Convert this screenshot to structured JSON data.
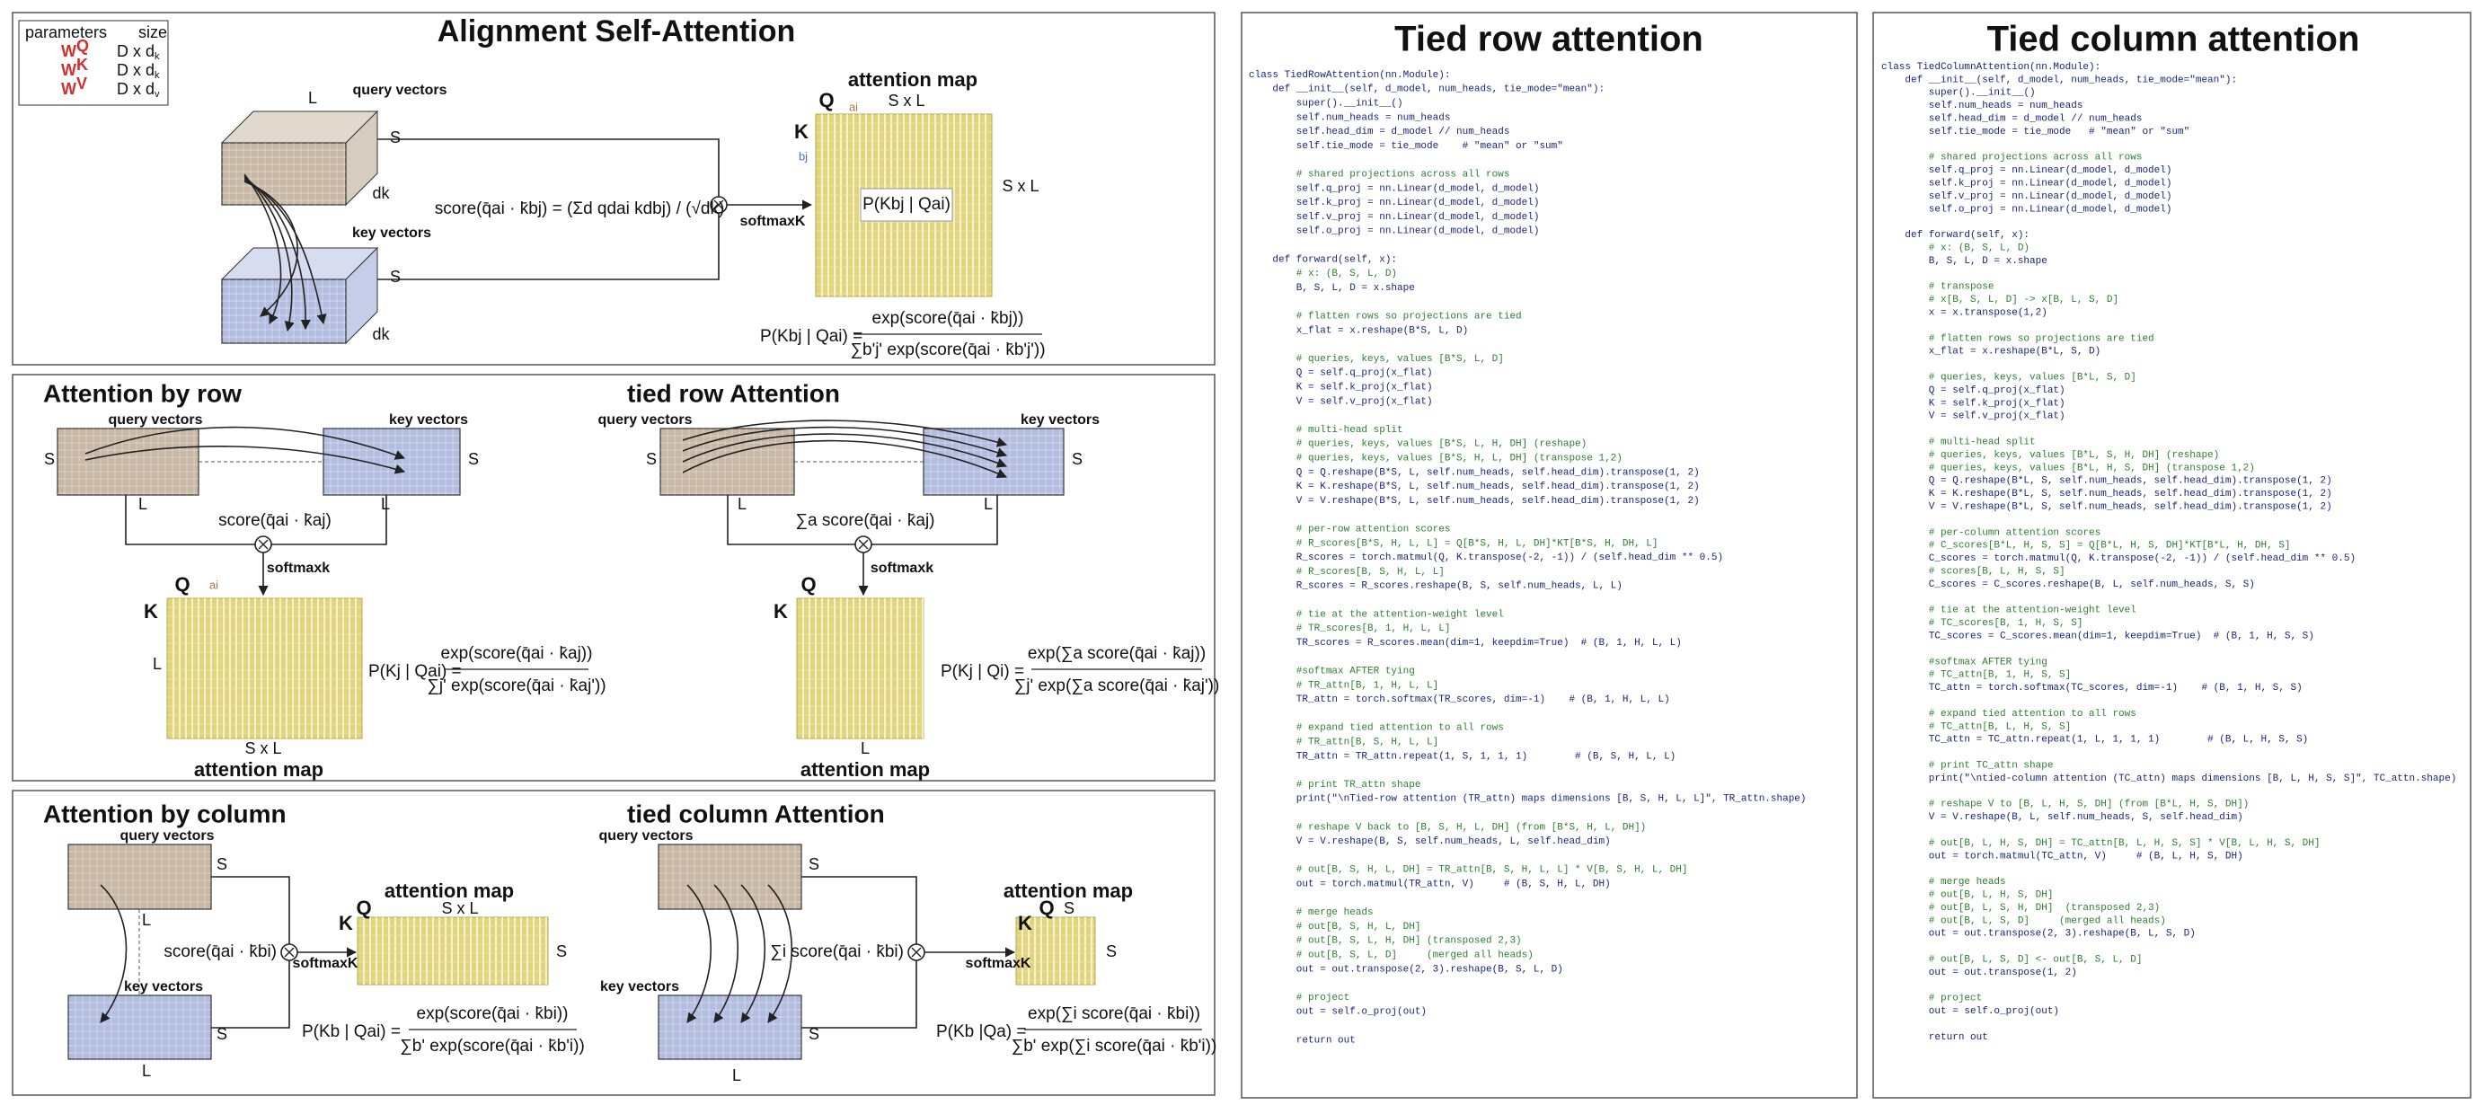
{
  "parameters": {
    "header": [
      "parameters",
      "size"
    ],
    "rows": [
      {
        "name": "W",
        "sup": "Q",
        "size": "D x d",
        "sub": "k"
      },
      {
        "name": "W",
        "sup": "K",
        "size": "D x d",
        "sub": "k"
      },
      {
        "name": "W",
        "sup": "V",
        "size": "D x d",
        "sub": "v"
      }
    ]
  },
  "alignment": {
    "title": "Alignment Self-Attention",
    "query_vectors": "query vectors",
    "key_vectors": "key vectors",
    "L": "L",
    "S_query": "S",
    "dk_query": "dk",
    "S_key": "S",
    "dk_key": "dk",
    "score": "score(q̄ai · k̄bj) = (Σd qdai kdbj) / (√dk)",
    "softmax": "softmaxK",
    "map_title": "attention map",
    "Q": "Q",
    "ai": "ai",
    "K": "K",
    "bj": "bj",
    "map_cols": "S x L",
    "map_rows": "S x L",
    "cell": "P(Kbj | Qai)",
    "prob_lhs": "P(Kbj | Qai) =",
    "prob_num": "exp(score(q̄ai · k̄bj))",
    "prob_den": "∑bʹjʹ exp(score(q̄ai · k̄bʹjʹ))"
  },
  "by_row": {
    "title": "Attention by row",
    "query_vectors": "query vectors",
    "key_vectors": "key vectors",
    "S_left": "S",
    "S_right": "S",
    "L_left": "L",
    "L_right": "L",
    "score": "score(q̄ai · k̄aj)",
    "softmax": "softmaxk",
    "Q": "Q",
    "ai": "ai",
    "K": "K",
    "L": "L",
    "map_cols": "S x L",
    "map_title": "attention map",
    "prob_lhs": "P(Kj | Qai) =",
    "prob_num": "exp(score(q̄ai · k̄aj))",
    "prob_den": "∑jʹ exp(score(q̄ai · k̄ajʹ))"
  },
  "tied_row": {
    "title": "tied row Attention",
    "query_vectors": "query vectors",
    "key_vectors": "key vectors",
    "S_left": "S",
    "S_right": "S",
    "L_left": "L",
    "L_right": "L",
    "score": "∑a score(q̄ai · k̄aj)",
    "softmax": "softmaxk",
    "Q": "Q",
    "K": "K",
    "L": "L",
    "map_cols": "L",
    "map_title": "attention map",
    "prob_lhs": "P(Kj | Qi) =",
    "prob_num": "exp(∑a score(q̄ai · k̄aj))",
    "prob_den": "∑jʹ exp(∑a score(q̄ai · k̄ajʹ))"
  },
  "by_column": {
    "title": "Attention by column",
    "query_vectors": "query vectors",
    "key_vectors": "key vectors",
    "S_query": "S",
    "S_key": "S",
    "L_query": "L",
    "L_key": "L",
    "score": "score(q̄ai · k̄bi)",
    "softmax": "softmaxK",
    "map_title": "attention map",
    "Q": "Q",
    "map_cols": "S x L",
    "K": "K",
    "map_rows": "S",
    "prob_lhs": "P(Kb | Qai) =",
    "prob_num": "exp(score(q̄ai · k̄bi))",
    "prob_den": "∑bʹ exp(score(q̄ai · k̄bʹi))"
  },
  "tied_column": {
    "title": "tied column Attention",
    "query_vectors": "query vectors",
    "key_vectors": "key vectors",
    "S_query": "S",
    "S_key": "S",
    "L": "L",
    "score": "∑i score(q̄ai · k̄bi)",
    "softmax": "softmaxK",
    "map_title": "attention map",
    "Q": "Q",
    "map_cols": "S",
    "K": "K",
    "map_rows": "S",
    "prob_lhs": "P(Kb |Qa) =",
    "prob_num": "exp(∑i score(q̄ai · k̄bi))",
    "prob_den": "∑bʹ exp(∑i score(q̄ai · k̄bʹi))"
  },
  "code_row": {
    "title": "Tied row attention",
    "lines": [
      "class TiedRowAttention(nn.Module):",
      "    def __init__(self, d_model, num_heads, tie_mode=\"mean\"):",
      "        super().__init__()",
      "        self.num_heads = num_heads",
      "        self.head_dim = d_model // num_heads",
      "        self.tie_mode = tie_mode    # \"mean\" or \"sum\"",
      "",
      "        # shared projections across all rows",
      "        self.q_proj = nn.Linear(d_model, d_model)",
      "        self.k_proj = nn.Linear(d_model, d_model)",
      "        self.v_proj = nn.Linear(d_model, d_model)",
      "        self.o_proj = nn.Linear(d_model, d_model)",
      "",
      "    def forward(self, x):",
      "        # x: (B, S, L, D)",
      "        B, S, L, D = x.shape",
      "",
      "        # flatten rows so projections are tied",
      "        x_flat = x.reshape(B*S, L, D)",
      "",
      "        # queries, keys, values [B*S, L, D]",
      "        Q = self.q_proj(x_flat)",
      "        K = self.k_proj(x_flat)",
      "        V = self.v_proj(x_flat)",
      "",
      "        # multi-head split",
      "        # queries, keys, values [B*S, L, H, DH] (reshape)",
      "        # queries, keys, values [B*S, H, L, DH] (transpose 1,2)",
      "        Q = Q.reshape(B*S, L, self.num_heads, self.head_dim).transpose(1, 2)",
      "        K = K.reshape(B*S, L, self.num_heads, self.head_dim).transpose(1, 2)",
      "        V = V.reshape(B*S, L, self.num_heads, self.head_dim).transpose(1, 2)",
      "",
      "        # per-row attention scores",
      "        # R_scores[B*S, H, L, L] = Q[B*S, H, L, DH]*KT[B*S, H, DH, L]",
      "        R_scores = torch.matmul(Q, K.transpose(-2, -1)) / (self.head_dim ** 0.5)",
      "        # R_scores[B, S, H, L, L]",
      "        R_scores = R_scores.reshape(B, S, self.num_heads, L, L)",
      "",
      "        # tie at the attention-weight level",
      "        # TR_scores[B, 1, H, L, L]",
      "        TR_scores = R_scores.mean(dim=1, keepdim=True)  # (B, 1, H, L, L)",
      "",
      "        #softmax AFTER tying",
      "        # TR_attn[B, 1, H, L, L]",
      "        TR_attn = torch.softmax(TR_scores, dim=-1)    # (B, 1, H, L, L)",
      "",
      "        # expand tied attention to all rows",
      "        # TR_attn[B, S, H, L, L]",
      "        TR_attn = TR_attn.repeat(1, S, 1, 1, 1)        # (B, S, H, L, L)",
      "",
      "        # print TR_attn shape",
      "        print(\"\\nTied-row attention (TR_attn) maps dimensions [B, S, H, L, L]\", TR_attn.shape)",
      "",
      "        # reshape V back to [B, S, H, L, DH] (from [B*S, H, L, DH])",
      "        V = V.reshape(B, S, self.num_heads, L, self.head_dim)",
      "",
      "        # out[B, S, H, L, DH] = TR_attn[B, S, H, L, L] * V[B, S, H, L, DH]",
      "        out = torch.matmul(TR_attn, V)     # (B, S, H, L, DH)",
      "",
      "        # merge heads",
      "        # out[B, S, H, L, DH]",
      "        # out[B, S, L, H, DH] (transposed 2,3)",
      "        # out[B, S, L, D]     (merged all heads)",
      "        out = out.transpose(2, 3).reshape(B, S, L, D)",
      "",
      "        # project",
      "        out = self.o_proj(out)",
      "",
      "        return out"
    ]
  },
  "code_column": {
    "title": "Tied column attention",
    "lines": [
      "class TiedColumnAttention(nn.Module):",
      "    def __init__(self, d_model, num_heads, tie_mode=\"mean\"):",
      "        super().__init__()",
      "        self.num_heads = num_heads",
      "        self.head_dim = d_model // num_heads",
      "        self.tie_mode = tie_mode   # \"mean\" or \"sum\"",
      "",
      "        # shared projections across all rows",
      "        self.q_proj = nn.Linear(d_model, d_model)",
      "        self.k_proj = nn.Linear(d_model, d_model)",
      "        self.v_proj = nn.Linear(d_model, d_model)",
      "        self.o_proj = nn.Linear(d_model, d_model)",
      "",
      "    def forward(self, x):",
      "        # x: (B, S, L, D)",
      "        B, S, L, D = x.shape",
      "",
      "        # transpose",
      "        # x[B, S, L, D] -> x[B, L, S, D]",
      "        x = x.transpose(1,2)",
      "",
      "        # flatten rows so projections are tied",
      "        x_flat = x.reshape(B*L, S, D)",
      "",
      "        # queries, keys, values [B*L, S, D]",
      "        Q = self.q_proj(x_flat)",
      "        K = self.k_proj(x_flat)",
      "        V = self.v_proj(x_flat)",
      "",
      "        # multi-head split",
      "        # queries, keys, values [B*L, S, H, DH] (reshape)",
      "        # queries, keys, values [B*L, H, S, DH] (transpose 1,2)",
      "        Q = Q.reshape(B*L, S, self.num_heads, self.head_dim).transpose(1, 2)",
      "        K = K.reshape(B*L, S, self.num_heads, self.head_dim).transpose(1, 2)",
      "        V = V.reshape(B*L, S, self.num_heads, self.head_dim).transpose(1, 2)",
      "",
      "        # per-column attention scores",
      "        # C_scores[B*L, H, S, S] = Q[B*L, H, S, DH]*KT[B*L, H, DH, S]",
      "        C_scores = torch.matmul(Q, K.transpose(-2, -1)) / (self.head_dim ** 0.5)",
      "        # scores[B, L, H, S, S]",
      "        C_scores = C_scores.reshape(B, L, self.num_heads, S, S)",
      "",
      "        # tie at the attention-weight level",
      "        # TC_scores[B, 1, H, S, S]",
      "        TC_scores = C_scores.mean(dim=1, keepdim=True)  # (B, 1, H, S, S)",
      "",
      "        #softmax AFTER tying",
      "        # TC_attn[B, 1, H, S, S]",
      "        TC_attn = torch.softmax(TC_scores, dim=-1)    # (B, 1, H, S, S)",
      "",
      "        # expand tied attention to all rows",
      "        # TC_attn[B, L, H, S, S]",
      "        TC_attn = TC_attn.repeat(1, L, 1, 1, 1)        # (B, L, H, S, S)",
      "",
      "        # print TC_attn shape",
      "        print(\"\\ntied-column attention (TC_attn) maps dimensions [B, L, H, S, S]\", TC_attn.shape)",
      "",
      "        # reshape V to [B, L, H, S, DH] (from [B*L, H, S, DH])",
      "        V = V.reshape(B, L, self.num_heads, S, self.head_dim)",
      "",
      "        # out[B, L, H, S, DH] = TC_attn[B, L, H, S, S] * V[B, L, H, S, DH]",
      "        out = torch.matmul(TC_attn, V)     # (B, L, H, S, DH)",
      "",
      "        # merge heads",
      "        # out[B, L, H, S, DH]",
      "        # out[B, L, S, H, DH]  (transposed 2,3)",
      "        # out[B, L, S, D]     (merged all heads)",
      "        out = out.transpose(2, 3).reshape(B, L, S, D)",
      "",
      "        # out[B, L, S, D] <- out[B, S, L, D]",
      "        out = out.transpose(1, 2)",
      "",
      "        # project",
      "        out = self.o_proj(out)",
      "",
      "        return out"
    ]
  }
}
